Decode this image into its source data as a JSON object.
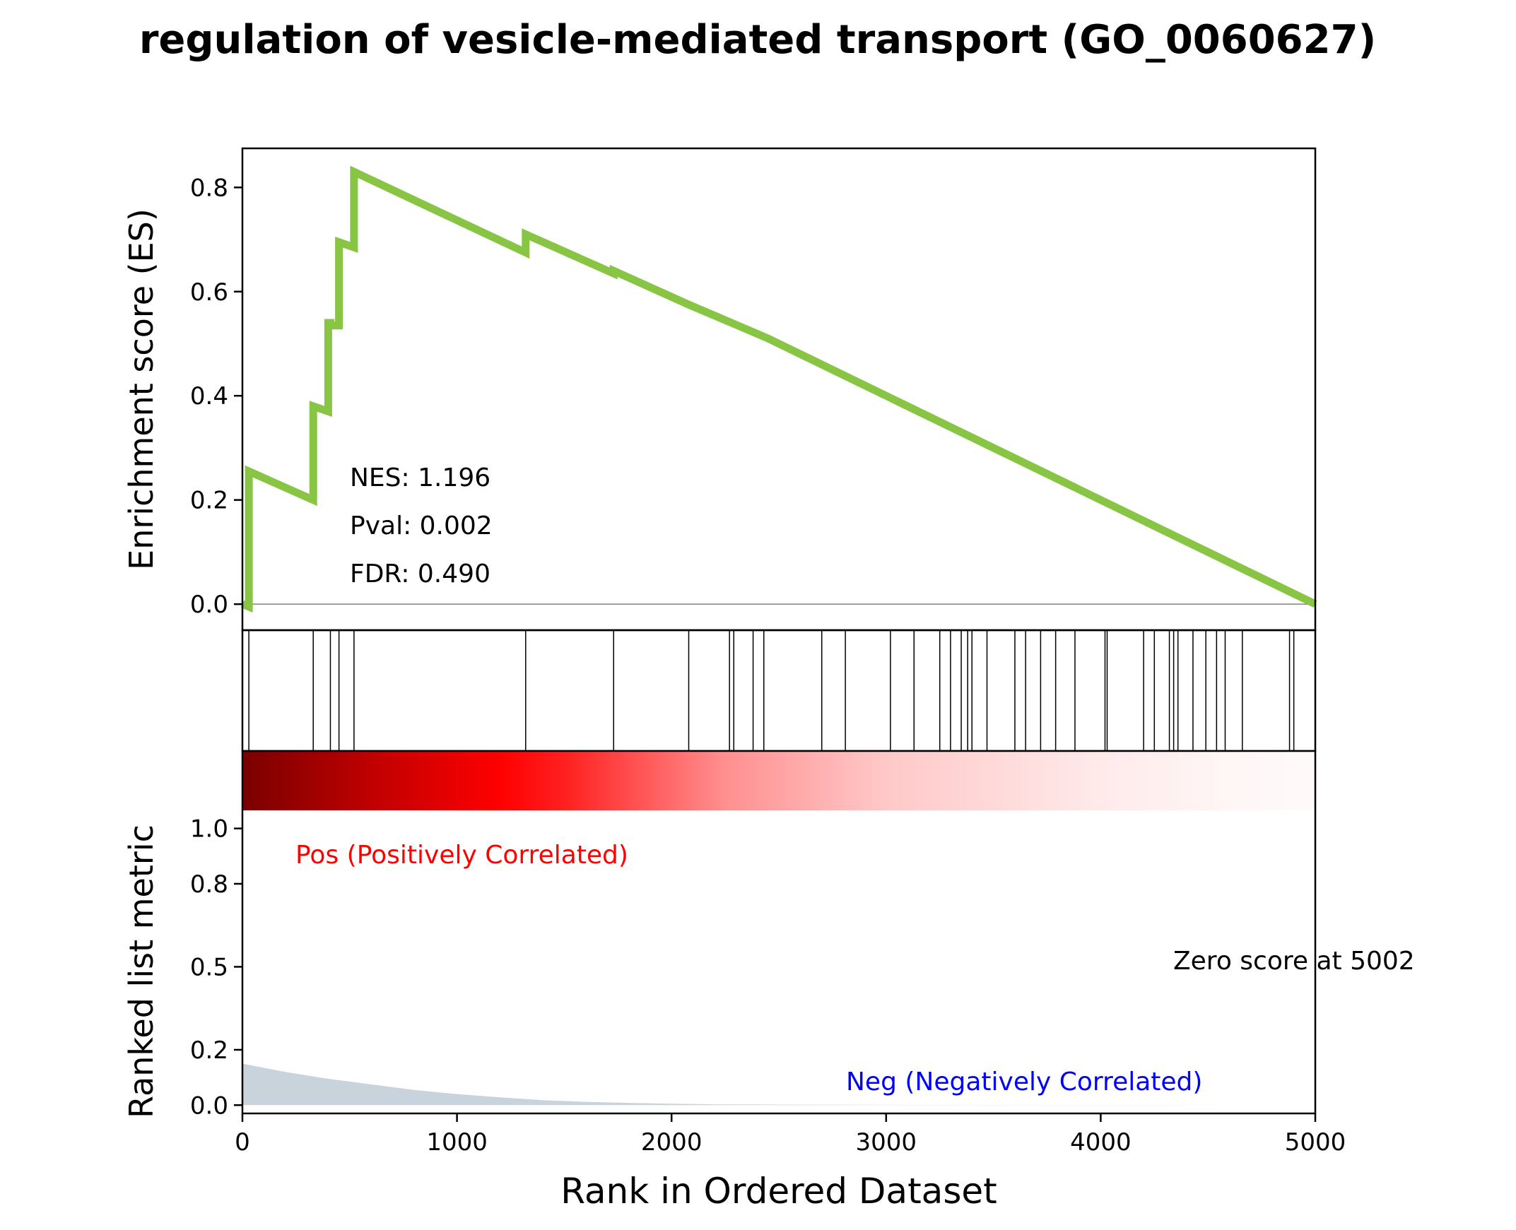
{
  "chart_data": {
    "type": "line",
    "title": "regulation of vesicle-mediated transport (GO_0060627)",
    "xlabel": "Rank in Ordered Dataset",
    "xlim": [
      0,
      5000
    ],
    "x_ticks": [
      0,
      1000,
      2000,
      3000,
      4000,
      5000
    ],
    "x_tick_labels": [
      "0",
      "1000",
      "2000",
      "3000",
      "4000",
      "5000"
    ],
    "colors": {
      "es_line": "#88c544",
      "pos_label": "#ff0000",
      "neg_label": "#0000ff",
      "metric_fill": "#c9d3dc",
      "heat_dark": "#800000",
      "heat_mid": "#ff0000"
    },
    "es_panel": {
      "ylabel": "Enrichment score (ES)",
      "ylim": [
        -0.05,
        0.875
      ],
      "y_ticks": [
        0.0,
        0.2,
        0.4,
        0.6,
        0.8
      ],
      "y_tick_labels": [
        "0.0",
        "0.2",
        "0.4",
        "0.6",
        "0.8"
      ],
      "series": [
        {
          "x": [
            0,
            30,
            30,
            330,
            330,
            400,
            400,
            410,
            410,
            450,
            450,
            520,
            520,
            1320,
            1320,
            1730,
            1730,
            2080,
            2280,
            2450,
            5000
          ],
          "y": [
            0.0,
            -0.005,
            0.255,
            0.2,
            0.38,
            0.37,
            0.54,
            0.54,
            0.535,
            0.535,
            0.695,
            0.685,
            0.83,
            0.675,
            0.71,
            0.635,
            0.64,
            0.575,
            0.54,
            0.51,
            0.0
          ]
        }
      ],
      "stats": {
        "nes": "NES: 1.196",
        "pval": "Pval: 0.002",
        "fdr": "FDR: 0.490"
      }
    },
    "hits_panel": {
      "positions": [
        30,
        330,
        410,
        450,
        520,
        1320,
        1730,
        2080,
        2270,
        2290,
        2380,
        2430,
        2700,
        2810,
        3020,
        3130,
        3250,
        3300,
        3350,
        3380,
        3400,
        3470,
        3600,
        3650,
        3720,
        3790,
        3880,
        4020,
        4030,
        4200,
        4250,
        4320,
        4340,
        4360,
        4430,
        4490,
        4540,
        4580,
        4660,
        4880,
        4900
      ]
    },
    "metric_panel": {
      "ylabel": "Ranked list metric",
      "ylim": [
        -0.03,
        1.28
      ],
      "y_ticks": [
        0.0,
        0.2,
        0.5,
        0.8,
        1.0
      ],
      "y_tick_labels": [
        "0.0",
        "0.2",
        "0.5",
        "0.8",
        "1.0"
      ],
      "series": [
        {
          "x": [
            0,
            200,
            400,
            600,
            800,
            1000,
            1200,
            1400,
            1600,
            1800,
            2000,
            2200,
            2500,
            3000,
            5000
          ],
          "y": [
            0.15,
            0.12,
            0.095,
            0.075,
            0.055,
            0.04,
            0.028,
            0.018,
            0.012,
            0.008,
            0.005,
            0.003,
            0.002,
            0.001,
            0.0
          ]
        }
      ],
      "pos_label": "Pos (Positively Correlated)",
      "neg_label": "Neg (Negatively Correlated)",
      "zero_label": "Zero score at 5002"
    }
  }
}
